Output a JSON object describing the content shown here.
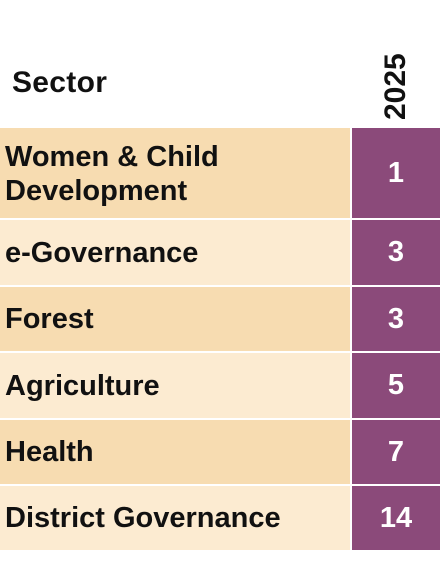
{
  "table": {
    "header": {
      "sector_label": "Sector",
      "year_label": "2025"
    },
    "rows": [
      {
        "sector": "Women & Child Development",
        "value": "1"
      },
      {
        "sector": "e-Governance",
        "value": "3"
      },
      {
        "sector": "Forest",
        "value": "3"
      },
      {
        "sector": "Agriculture",
        "value": "5"
      },
      {
        "sector": "Health",
        "value": "7"
      },
      {
        "sector": "District Governance",
        "value": "14"
      }
    ]
  },
  "colors": {
    "value_column": "#8b4a7a",
    "row_dark": "#f7dcb1",
    "row_light": "#fcebd1"
  }
}
